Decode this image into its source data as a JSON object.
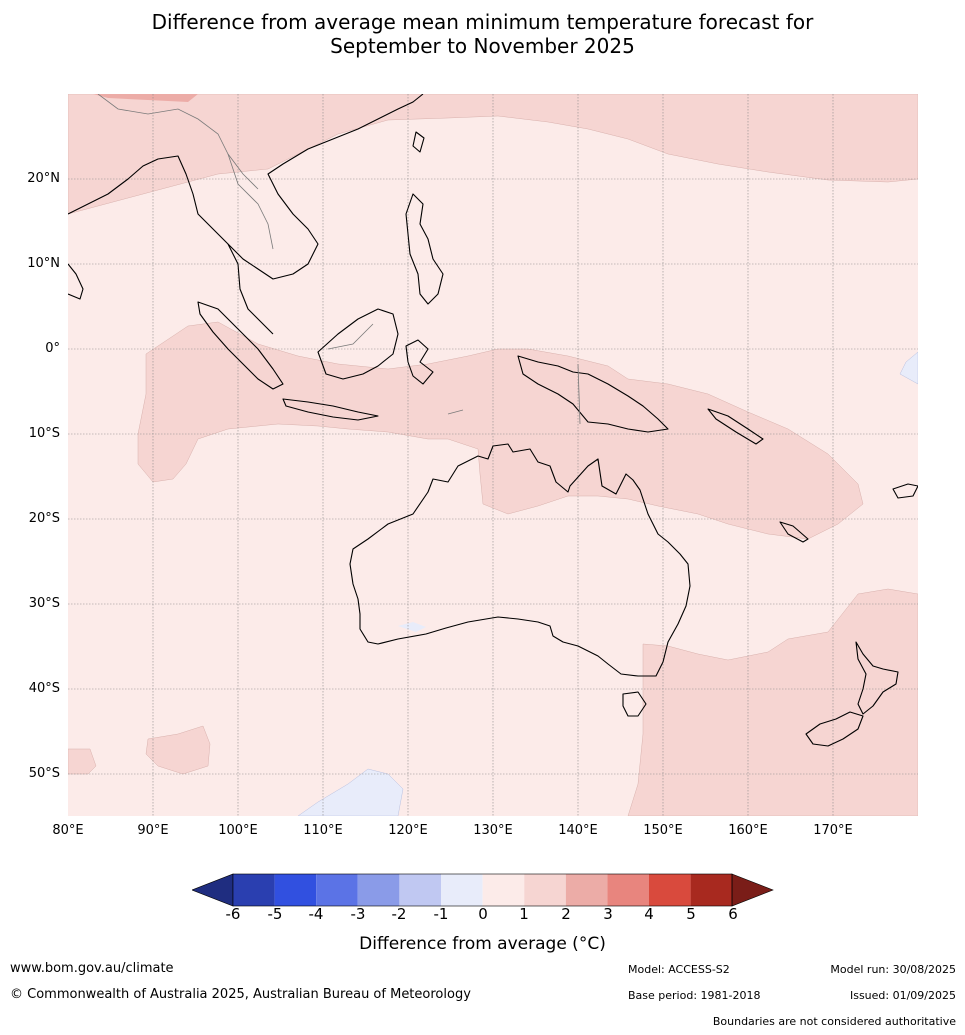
{
  "title_line1": "Difference from average mean minimum temperature forecast for",
  "title_line2": "September to November 2025",
  "lat_labels": [
    "20°N",
    "10°N",
    "0°",
    "10°S",
    "20°S",
    "30°S",
    "40°S",
    "50°S"
  ],
  "lon_labels": [
    "80°E",
    "90°E",
    "100°E",
    "110°E",
    "120°E",
    "130°E",
    "140°E",
    "150°E",
    "160°E",
    "170°E"
  ],
  "colorbar": {
    "label": "Difference from average (°C)",
    "label_prefix": "Difference from average (",
    "label_unit": "°C",
    "label_suffix": ")",
    "ticks": [
      "-6",
      "-5",
      "-4",
      "-3",
      "-2",
      "-1",
      "0",
      "1",
      "2",
      "3",
      "4",
      "5",
      "6"
    ],
    "colors": [
      "#1f2d80",
      "#2a3fb0",
      "#3150e0",
      "#5b73e6",
      "#8a9be8",
      "#c0c8f2",
      "#e8ecfa",
      "#fcebe9",
      "#f6d5d2",
      "#ecaca7",
      "#e8857e",
      "#d94a3d",
      "#a8291f",
      "#7a1d18"
    ],
    "units": "°C"
  },
  "map": {
    "extent_lon": [
      80,
      180
    ],
    "extent_lat": [
      -55,
      30
    ],
    "fill_colors": {
      "ocean_0_1": "#fcebe9",
      "band_1_2": "#f6d5d2",
      "band_0_neg1": "#e8ecfa"
    }
  },
  "footer": {
    "website": "www.bom.gov.au/climate",
    "copyright": "© Commonwealth of Australia 2025, Australian Bureau of Meteorology",
    "model": "Model: ACCESS-S2",
    "model_run": "Model run: 30/08/2025",
    "base_period": "Base period: 1981-2018",
    "issued": "Issued: 01/09/2025",
    "disclaimer": "Boundaries are not considered authoritative"
  }
}
